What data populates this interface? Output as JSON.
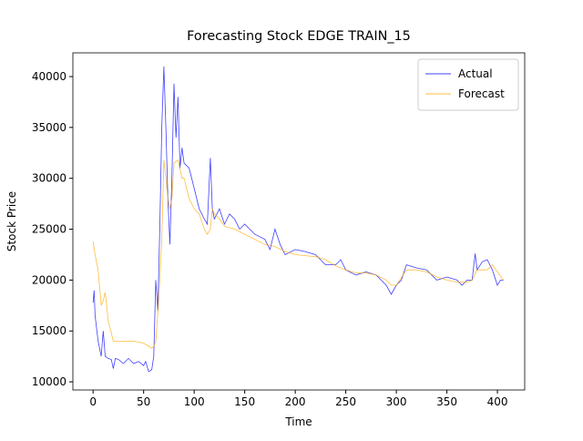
{
  "chart_data": {
    "type": "line",
    "title": "Forecasting Stock EDGE TRAIN_15",
    "xlabel": "Time",
    "ylabel": "Stock Price",
    "xlim": [
      -20,
      427
    ],
    "ylim": [
      9200,
      42330
    ],
    "xticks": [
      0,
      50,
      100,
      150,
      200,
      250,
      300,
      350,
      400
    ],
    "yticks": [
      10000,
      15000,
      20000,
      25000,
      30000,
      35000,
      40000
    ],
    "legend": "upper right",
    "series": [
      {
        "name": "Actual",
        "color": "#0000ff",
        "x": [
          0,
          1,
          2,
          5,
          8,
          10,
          12,
          15,
          18,
          20,
          22,
          25,
          30,
          35,
          40,
          45,
          50,
          52,
          55,
          58,
          60,
          62,
          64,
          66,
          68,
          70,
          72,
          74,
          76,
          78,
          80,
          82,
          84,
          86,
          88,
          90,
          95,
          100,
          105,
          110,
          113,
          116,
          118,
          120,
          125,
          130,
          135,
          140,
          145,
          150,
          160,
          170,
          175,
          180,
          185,
          190,
          200,
          210,
          220,
          230,
          240,
          245,
          250,
          260,
          270,
          280,
          290,
          295,
          300,
          305,
          310,
          320,
          330,
          340,
          350,
          360,
          365,
          370,
          375,
          378,
          380,
          385,
          390,
          395,
          400,
          403,
          406
        ],
        "values": [
          17800,
          19000,
          16500,
          14000,
          12500,
          15000,
          12500,
          12300,
          12200,
          11300,
          12300,
          12200,
          11800,
          12300,
          11800,
          12000,
          11600,
          12000,
          11000,
          11200,
          12500,
          20000,
          17000,
          25000,
          35000,
          41000,
          35000,
          28000,
          23500,
          30000,
          39300,
          34000,
          38000,
          31000,
          33000,
          31500,
          31000,
          29000,
          27000,
          26000,
          25500,
          32000,
          27000,
          26000,
          27000,
          25500,
          26500,
          26000,
          25000,
          25500,
          24500,
          24000,
          23000,
          25000,
          23500,
          22500,
          23000,
          22800,
          22500,
          21500,
          21500,
          22000,
          21000,
          20500,
          20800,
          20500,
          19500,
          18600,
          19500,
          20000,
          21500,
          21200,
          21000,
          20000,
          20300,
          20000,
          19500,
          20000,
          20000,
          22600,
          21000,
          21800,
          22000,
          21000,
          19500,
          20000,
          20000
        ]
      },
      {
        "name": "Forecast",
        "color": "#ffa500",
        "x": [
          0,
          2,
          5,
          8,
          10,
          12,
          15,
          18,
          20,
          30,
          40,
          50,
          55,
          58,
          60,
          62,
          65,
          68,
          70,
          72,
          74,
          76,
          78,
          80,
          84,
          88,
          90,
          95,
          100,
          105,
          110,
          113,
          116,
          118,
          120,
          125,
          130,
          140,
          150,
          160,
          170,
          180,
          190,
          200,
          210,
          220,
          230,
          240,
          250,
          260,
          270,
          280,
          290,
          295,
          300,
          310,
          320,
          330,
          340,
          350,
          360,
          370,
          375,
          380,
          390,
          395,
          400,
          406
        ],
        "values": [
          23800,
          22500,
          21000,
          17500,
          18000,
          18800,
          16000,
          14800,
          14000,
          14000,
          14000,
          13800,
          13500,
          13300,
          13500,
          14000,
          18000,
          24000,
          31800,
          30000,
          28000,
          27000,
          28000,
          31500,
          31800,
          30000,
          30000,
          28000,
          27000,
          26500,
          25000,
          24500,
          25000,
          27000,
          26500,
          26000,
          25300,
          25000,
          24500,
          24000,
          23500,
          23300,
          22800,
          22500,
          22400,
          22300,
          22000,
          21400,
          21000,
          20700,
          20700,
          20500,
          20000,
          19500,
          19500,
          21000,
          21000,
          20800,
          20300,
          20000,
          19800,
          19800,
          20000,
          21000,
          21000,
          21500,
          20800,
          20000
        ]
      }
    ]
  }
}
